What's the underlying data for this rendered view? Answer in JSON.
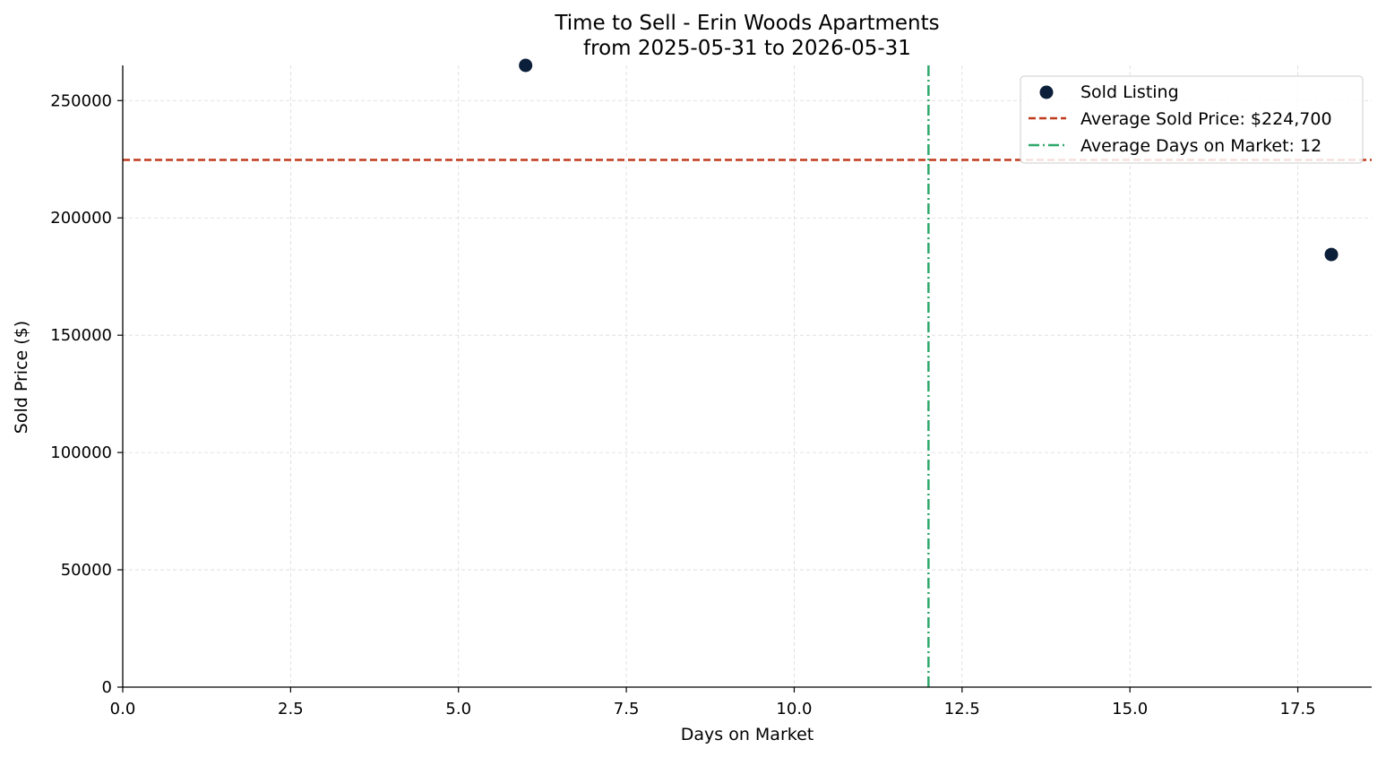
{
  "chart_data": {
    "type": "scatter",
    "title": "Time to Sell - Erin Woods Apartments",
    "subtitle": "from 2025-05-31 to 2026-05-31",
    "xlabel": "Days on Market",
    "ylabel": "Sold Price ($)",
    "xlim": [
      0,
      18.6
    ],
    "ylim": [
      0,
      265000
    ],
    "x_ticks": [
      0.0,
      2.5,
      5.0,
      7.5,
      10.0,
      12.5,
      15.0,
      17.5
    ],
    "x_tick_labels": [
      "0.0",
      "2.5",
      "5.0",
      "7.5",
      "10.0",
      "12.5",
      "15.0",
      "17.5"
    ],
    "y_ticks": [
      0,
      50000,
      100000,
      150000,
      200000,
      250000
    ],
    "y_tick_labels": [
      "0",
      "50000",
      "100000",
      "150000",
      "200000",
      "250000"
    ],
    "grid": true,
    "legend_placement": "top-right",
    "series": [
      {
        "name": "Sold Listing",
        "kind": "points",
        "color": "#0b1f3a",
        "points": [
          {
            "x": 6,
            "y": 265000
          },
          {
            "x": 18,
            "y": 184400
          }
        ]
      }
    ],
    "reference_lines": [
      {
        "name": "Average Sold Price: $224,700",
        "orientation": "horizontal",
        "value": 224700,
        "color": "#c0391b",
        "style": "dashed"
      },
      {
        "name": "Average Days on Market: 12",
        "orientation": "vertical",
        "value": 12,
        "color": "#2ea86a",
        "style": "dashdot"
      }
    ]
  }
}
